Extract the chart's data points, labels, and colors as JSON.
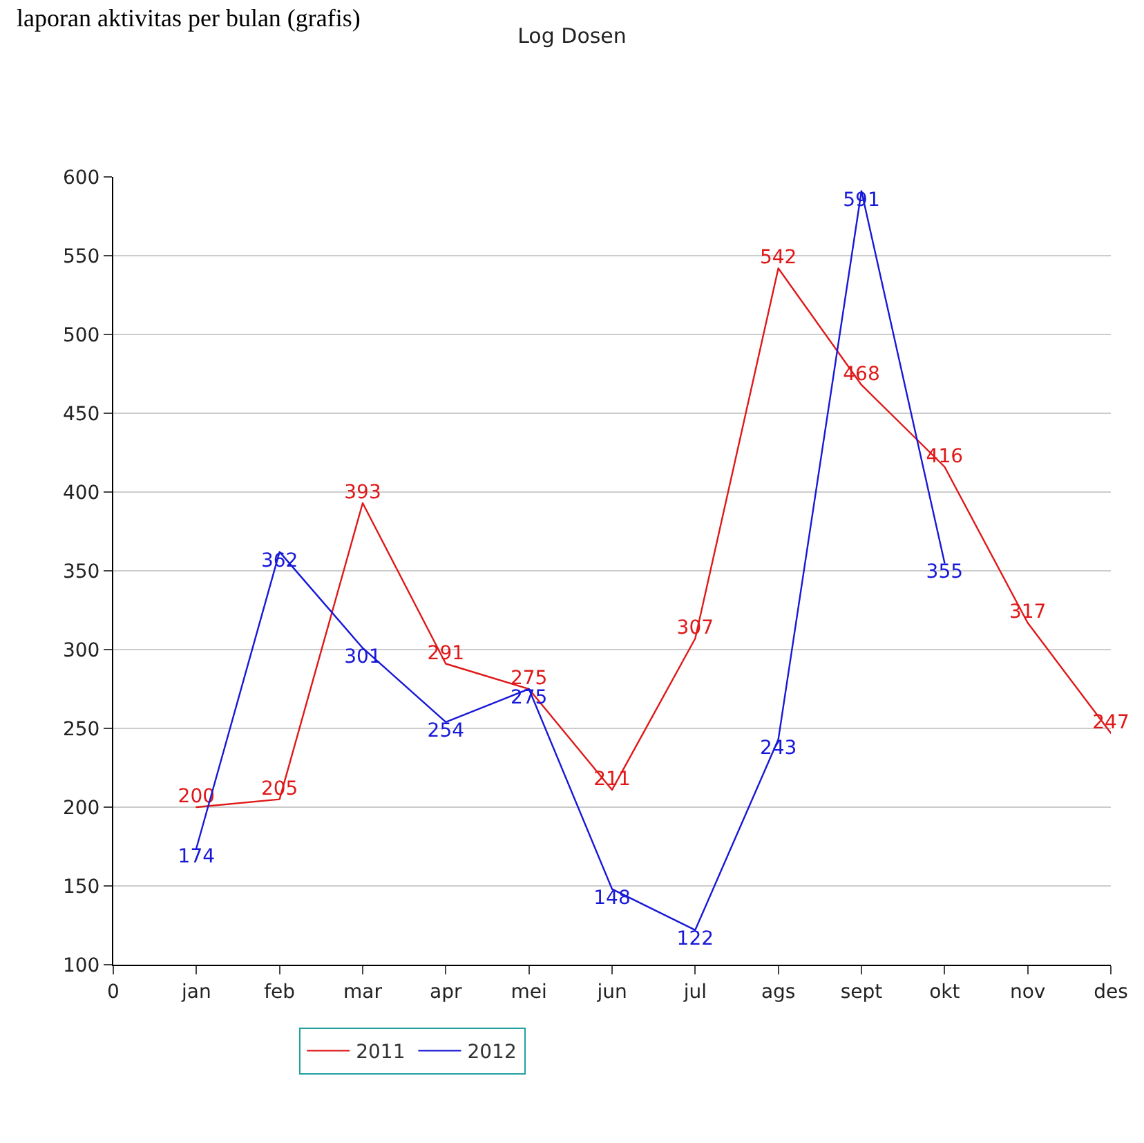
{
  "chart_data": {
    "type": "line",
    "title": "Log Dosen",
    "categories": [
      "0",
      "jan",
      "feb",
      "mar",
      "apr",
      "mei",
      "jun",
      "jul",
      "ags",
      "sept",
      "okt",
      "nov",
      "des"
    ],
    "series": [
      {
        "name": "2011",
        "color": "#e01818",
        "values": [
          null,
          200,
          205,
          393,
          291,
          275,
          211,
          307,
          542,
          468,
          416,
          317,
          247
        ]
      },
      {
        "name": "2012",
        "color": "#1818d8",
        "values": [
          null,
          174,
          362,
          301,
          254,
          275,
          148,
          122,
          243,
          591,
          355,
          null,
          null
        ]
      }
    ],
    "ylim": [
      100,
      600
    ],
    "yticks": [
      100,
      150,
      200,
      250,
      300,
      350,
      400,
      450,
      500,
      550,
      600
    ],
    "grid": "y",
    "legend": "bottom",
    "data_labels": true,
    "marker": "none",
    "line_style": "solid",
    "annotations": [
      "laporan aktivitas per bulan (grafis)"
    ]
  }
}
